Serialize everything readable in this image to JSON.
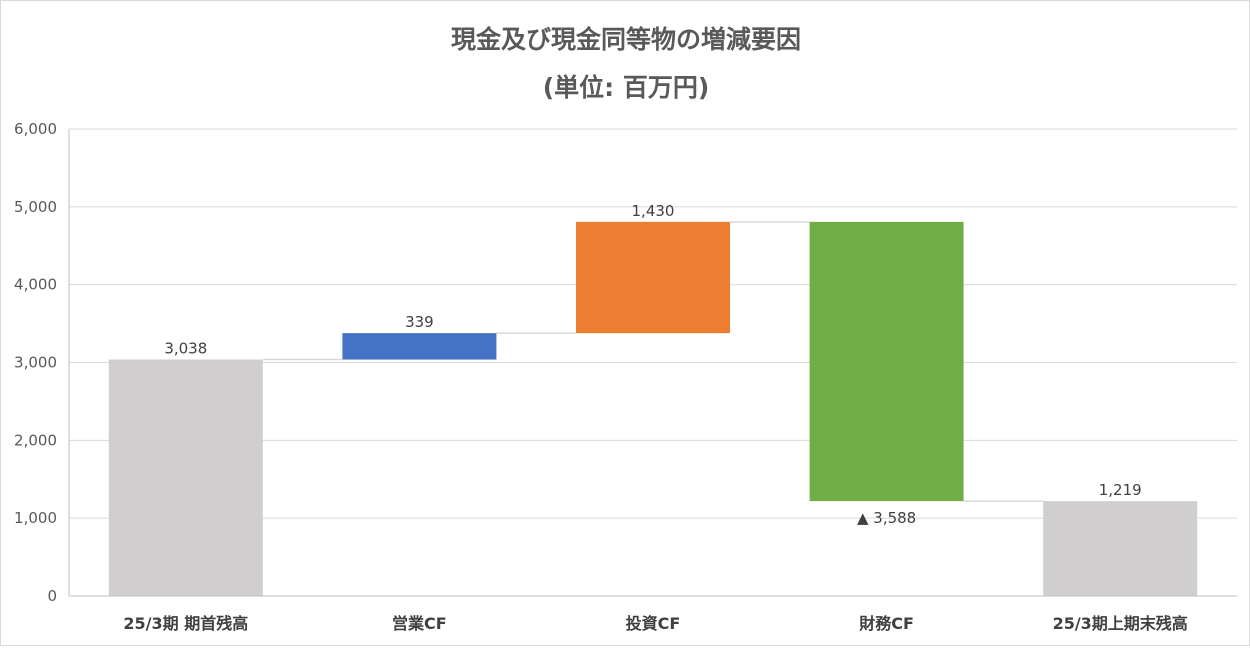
{
  "chart_data": {
    "type": "waterfall",
    "title": "現金及び現金同等物の増減要因",
    "subtitle": "(単位: 百万円)",
    "ylim": [
      0,
      6000
    ],
    "ytick_values": [
      0,
      1000,
      2000,
      3000,
      4000,
      5000,
      6000
    ],
    "ytick_labels": [
      "0",
      "1,000",
      "2,000",
      "3,000",
      "4,000",
      "5,000",
      "6,000"
    ],
    "grid": true,
    "legend": "none",
    "categories": [
      "25/3期 期首残高",
      "営業CF",
      "投資CF",
      "財務CF",
      "25/3期上期末残高"
    ],
    "bars": [
      {
        "category": "25/3期 期首残高",
        "start": 0,
        "end": 3038,
        "value": 3038,
        "label": "3,038",
        "kind": "total",
        "color": "#d0cece"
      },
      {
        "category": "営業CF",
        "start": 3038,
        "end": 3377,
        "value": 339,
        "label": "339",
        "kind": "increase",
        "color": "#4472c4"
      },
      {
        "category": "投資CF",
        "start": 3377,
        "end": 4807,
        "value": 1430,
        "label": "1,430",
        "kind": "increase",
        "color": "#ed7d31"
      },
      {
        "category": "財務CF",
        "start": 4807,
        "end": 1219,
        "value": -3588,
        "label": "▲ 3,588",
        "kind": "decrease",
        "color": "#70ad47"
      },
      {
        "category": "25/3期上期末残高",
        "start": 0,
        "end": 1219,
        "value": 1219,
        "label": "1,219",
        "kind": "total",
        "color": "#d0cece"
      }
    ]
  }
}
